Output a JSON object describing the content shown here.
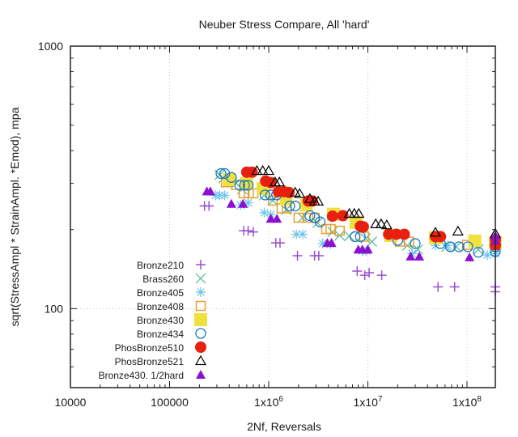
{
  "chart_data": {
    "type": "scatter",
    "title": "Neuber Stress Compare, All 'hard'",
    "xlabel": "2Nf, Reversals",
    "ylabel": "sqrt(StressAmpl * StrainAmpl. *Emod), mpa",
    "xscale": "log",
    "yscale": "log",
    "xlim": [
      10000,
      193000000
    ],
    "ylim": [
      50,
      1000
    ],
    "grid": "dotted vertical and horizontal at major ticks",
    "legend_position": "bottom-left",
    "x_ticks": [
      {
        "value": 10000,
        "label": "10000"
      },
      {
        "value": 100000,
        "label": "100000"
      },
      {
        "value": 1000000,
        "label": "1x10",
        "sup": "6"
      },
      {
        "value": 10000000,
        "label": "1x10",
        "sup": "7"
      },
      {
        "value": 100000000,
        "label": "1x10",
        "sup": "8"
      }
    ],
    "y_ticks": [
      {
        "value": 1000,
        "label": "1000"
      },
      {
        "value": 100,
        "label": "100"
      }
    ],
    "series": [
      {
        "name": "Bronze210",
        "marker": "plus",
        "color": "#9b4fd6",
        "points": [
          [
            225000,
            246
          ],
          [
            250000,
            246
          ],
          [
            560000,
            198
          ],
          [
            620000,
            198
          ],
          [
            700000,
            196
          ],
          [
            1180000,
            178
          ],
          [
            1300000,
            178
          ],
          [
            1950000,
            159
          ],
          [
            2900000,
            159
          ],
          [
            3200000,
            159
          ],
          [
            7800000,
            139
          ],
          [
            9300000,
            134
          ],
          [
            10300000,
            137
          ],
          [
            13800000,
            134
          ],
          [
            51000000,
            121
          ],
          [
            75000000,
            121
          ],
          [
            193000000,
            121
          ],
          [
            193000000,
            116
          ]
        ]
      },
      {
        "name": "Brass260",
        "marker": "cross",
        "color": "#4fb89a",
        "points": [
          [
            320000,
            323
          ],
          [
            350000,
            314
          ],
          [
            470000,
            300
          ],
          [
            540000,
            285
          ],
          [
            900000,
            270
          ],
          [
            1100000,
            258
          ],
          [
            1500000,
            238
          ],
          [
            2200000,
            222
          ],
          [
            3100000,
            212
          ],
          [
            4400000,
            196
          ],
          [
            5200000,
            190
          ],
          [
            6500000,
            189
          ],
          [
            9500000,
            185
          ],
          [
            11000000,
            180
          ],
          [
            25000000,
            174
          ],
          [
            32000000,
            168
          ],
          [
            62000000,
            172
          ],
          [
            78000000,
            172
          ],
          [
            130000000,
            168
          ],
          [
            193000000,
            170
          ]
        ]
      },
      {
        "name": "Bronze405",
        "marker": "star",
        "color": "#6ac4ee",
        "points": [
          [
            290000,
            270
          ],
          [
            320000,
            270
          ],
          [
            360000,
            270
          ],
          [
            520000,
            248
          ],
          [
            620000,
            253
          ],
          [
            900000,
            232
          ],
          [
            1050000,
            228
          ],
          [
            1900000,
            192
          ],
          [
            2200000,
            192
          ],
          [
            3500000,
            177
          ],
          [
            4200000,
            176
          ],
          [
            8800000,
            166
          ],
          [
            9700000,
            166
          ],
          [
            28000000,
            162
          ],
          [
            48000000,
            174
          ],
          [
            64000000,
            174
          ],
          [
            160000000,
            160
          ],
          [
            193000000,
            162
          ]
        ]
      },
      {
        "name": "Bronze408",
        "marker": "square-open",
        "color": "#e8a030",
        "points": [
          [
            370000,
            303
          ],
          [
            470000,
            296
          ],
          [
            560000,
            275
          ],
          [
            630000,
            275
          ],
          [
            700000,
            275
          ],
          [
            1100000,
            258
          ],
          [
            1350000,
            241
          ],
          [
            1520000,
            241
          ],
          [
            2000000,
            222
          ],
          [
            2500000,
            222
          ],
          [
            2900000,
            222
          ],
          [
            3800000,
            201
          ],
          [
            4200000,
            201
          ],
          [
            5200000,
            198
          ],
          [
            9200000,
            188
          ],
          [
            21000000,
            180
          ],
          [
            26000000,
            180
          ],
          [
            100000000,
            175
          ],
          [
            193000000,
            175
          ]
        ]
      },
      {
        "name": "Bronze430",
        "marker": "square-filled",
        "color": "#f0e040",
        "points": [
          [
            400000,
            310
          ],
          [
            600000,
            300
          ],
          [
            880000,
            287
          ],
          [
            1500000,
            262
          ],
          [
            2400000,
            248
          ],
          [
            4500000,
            229
          ],
          [
            7600000,
            213
          ],
          [
            17000000,
            190
          ],
          [
            48000000,
            186
          ],
          [
            120000000,
            181
          ],
          [
            193000000,
            178
          ]
        ]
      },
      {
        "name": "Bronze434",
        "marker": "circle-open",
        "color": "#1a78c2",
        "points": [
          [
            330000,
            327
          ],
          [
            360000,
            327
          ],
          [
            420000,
            316
          ],
          [
            510000,
            295
          ],
          [
            570000,
            295
          ],
          [
            620000,
            295
          ],
          [
            920000,
            271
          ],
          [
            1050000,
            271
          ],
          [
            1200000,
            271
          ],
          [
            1630000,
            246
          ],
          [
            1850000,
            246
          ],
          [
            2600000,
            226
          ],
          [
            2900000,
            222
          ],
          [
            3300000,
            214
          ],
          [
            7400000,
            188
          ],
          [
            8400000,
            188
          ],
          [
            20000000,
            182
          ],
          [
            30000000,
            177
          ],
          [
            54000000,
            177
          ],
          [
            68000000,
            172
          ],
          [
            83000000,
            172
          ],
          [
            102000000,
            172
          ],
          [
            130000000,
            164
          ],
          [
            193000000,
            172
          ],
          [
            193000000,
            165
          ]
        ]
      },
      {
        "name": "PhosBronze510",
        "marker": "circle-filled",
        "color": "#e82010",
        "points": [
          [
            600000,
            331
          ],
          [
            680000,
            331
          ],
          [
            930000,
            306
          ],
          [
            1050000,
            302
          ],
          [
            1250000,
            279
          ],
          [
            1430000,
            279
          ],
          [
            1600000,
            277
          ],
          [
            2500000,
            257
          ],
          [
            2750000,
            257
          ],
          [
            4400000,
            225
          ],
          [
            5600000,
            226
          ],
          [
            8400000,
            206
          ],
          [
            9000000,
            205
          ],
          [
            16200000,
            192
          ],
          [
            19400000,
            192
          ],
          [
            23300000,
            192
          ],
          [
            48000000,
            188
          ],
          [
            54000000,
            188
          ],
          [
            193000000,
            183
          ],
          [
            193000000,
            175
          ]
        ]
      },
      {
        "name": "PhosBronze521",
        "marker": "triangle-open",
        "color": "#000000",
        "points": [
          [
            760000,
            335
          ],
          [
            870000,
            335
          ],
          [
            1000000,
            335
          ],
          [
            1160000,
            303
          ],
          [
            1280000,
            303
          ],
          [
            1850000,
            277
          ],
          [
            2050000,
            274
          ],
          [
            2600000,
            262
          ],
          [
            2900000,
            256
          ],
          [
            3150000,
            256
          ],
          [
            6500000,
            230
          ],
          [
            7300000,
            230
          ],
          [
            8100000,
            230
          ],
          [
            12000000,
            210
          ],
          [
            13600000,
            210
          ],
          [
            15500000,
            208
          ],
          [
            48000000,
            195
          ],
          [
            81000000,
            197
          ],
          [
            193000000,
            193
          ]
        ]
      },
      {
        "name": "Bronze430. 1/2hard",
        "marker": "triangle-filled",
        "color": "#8b10d0",
        "points": [
          [
            238000,
            280
          ],
          [
            258000,
            280
          ],
          [
            420000,
            251
          ],
          [
            550000,
            251
          ],
          [
            1050000,
            220
          ],
          [
            1210000,
            220
          ],
          [
            3900000,
            178
          ],
          [
            4300000,
            178
          ],
          [
            8000000,
            168
          ],
          [
            8800000,
            168
          ],
          [
            10000000,
            168
          ],
          [
            27000000,
            158
          ],
          [
            33000000,
            158
          ],
          [
            106000000,
            157
          ],
          [
            193000000,
            190
          ],
          [
            193000000,
            182
          ]
        ]
      }
    ]
  }
}
